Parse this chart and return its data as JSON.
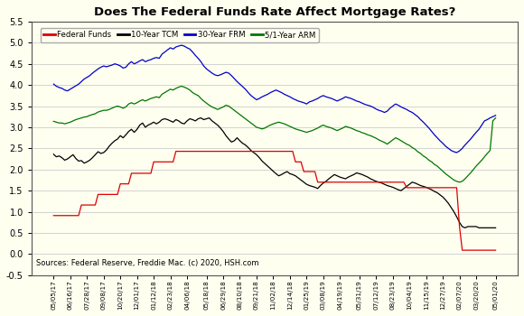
{
  "title": "Does The Federal Funds Rate Affect Mortgage Rates?",
  "background_color": "#FFFFF0",
  "grid_color": "#cccccc",
  "source_text": "Sources: Federal Reserve, Freddie Mac. (c) 2020, HSH.com",
  "ylim": [
    -0.5,
    5.5
  ],
  "yticks": [
    -0.5,
    0.0,
    0.5,
    1.0,
    1.5,
    2.0,
    2.5,
    3.0,
    3.5,
    4.0,
    4.5,
    5.0,
    5.5
  ],
  "series_colors": {
    "fed_funds": "#dd0000",
    "tcm10": "#000000",
    "frm30": "#0000cc",
    "arm51": "#007700"
  },
  "legend_labels": [
    "Federal Funds",
    "10-Year TCM",
    "30-Year FRM",
    "5/1-Year ARM"
  ],
  "xtick_labels": [
    "05/05/17",
    "06/16/17",
    "07/28/17",
    "09/08/17",
    "10/20/17",
    "12/01/17",
    "01/12/18",
    "02/23/18",
    "04/06/18",
    "05/18/18",
    "06/29/18",
    "08/10/18",
    "09/21/18",
    "11/02/18",
    "12/14/18",
    "01/25/19",
    "03/08/19",
    "04/19/19",
    "05/31/19",
    "07/12/19",
    "08/23/19",
    "10/04/19",
    "11/15/19",
    "12/27/19",
    "02/07/20",
    "03/20/20",
    "05/01/20"
  ],
  "n_points": 160,
  "fed_funds": [
    0.91,
    0.91,
    0.91,
    0.91,
    0.91,
    0.91,
    0.91,
    0.91,
    0.91,
    0.91,
    1.16,
    1.16,
    1.16,
    1.16,
    1.16,
    1.16,
    1.41,
    1.41,
    1.41,
    1.41,
    1.41,
    1.41,
    1.41,
    1.41,
    1.66,
    1.66,
    1.66,
    1.66,
    1.91,
    1.91,
    1.91,
    1.91,
    1.91,
    1.91,
    1.91,
    1.91,
    2.18,
    2.18,
    2.18,
    2.18,
    2.18,
    2.18,
    2.18,
    2.18,
    2.43,
    2.43,
    2.43,
    2.43,
    2.43,
    2.43,
    2.43,
    2.43,
    2.43,
    2.43,
    2.43,
    2.43,
    2.43,
    2.43,
    2.43,
    2.43,
    2.43,
    2.43,
    2.43,
    2.43,
    2.43,
    2.43,
    2.43,
    2.43,
    2.43,
    2.43,
    2.43,
    2.43,
    2.43,
    2.43,
    2.43,
    2.43,
    2.43,
    2.43,
    2.43,
    2.43,
    2.43,
    2.43,
    2.43,
    2.43,
    2.43,
    2.43,
    2.43,
    2.18,
    2.18,
    2.18,
    1.95,
    1.95,
    1.95,
    1.95,
    1.95,
    1.7,
    1.7,
    1.7,
    1.7,
    1.7,
    1.7,
    1.7,
    1.7,
    1.7,
    1.7,
    1.7,
    1.7,
    1.7,
    1.7,
    1.7,
    1.7,
    1.7,
    1.7,
    1.7,
    1.7,
    1.7,
    1.7,
    1.7,
    1.7,
    1.7,
    1.7,
    1.7,
    1.7,
    1.7,
    1.7,
    1.7,
    1.7,
    1.57,
    1.57,
    1.57,
    1.57,
    1.57,
    1.57,
    1.57,
    1.57,
    1.57,
    1.57,
    1.57,
    1.57,
    1.57,
    1.57,
    1.57,
    1.57,
    1.57,
    1.57,
    1.57,
    0.65,
    0.09,
    0.09,
    0.09,
    0.09,
    0.09,
    0.09,
    0.09,
    0.09,
    0.09,
    0.09,
    0.09,
    0.09,
    0.09
  ],
  "tcm10": [
    2.36,
    2.3,
    2.32,
    2.28,
    2.22,
    2.25,
    2.3,
    2.35,
    2.26,
    2.2,
    2.21,
    2.15,
    2.18,
    2.22,
    2.28,
    2.35,
    2.42,
    2.38,
    2.4,
    2.46,
    2.55,
    2.62,
    2.68,
    2.72,
    2.8,
    2.75,
    2.82,
    2.9,
    2.95,
    2.88,
    2.95,
    3.05,
    3.1,
    3.0,
    3.05,
    3.08,
    3.12,
    3.08,
    3.12,
    3.18,
    3.2,
    3.18,
    3.15,
    3.12,
    3.18,
    3.15,
    3.1,
    3.08,
    3.15,
    3.2,
    3.18,
    3.15,
    3.2,
    3.22,
    3.18,
    3.2,
    3.22,
    3.15,
    3.1,
    3.05,
    2.98,
    2.9,
    2.8,
    2.72,
    2.65,
    2.68,
    2.75,
    2.68,
    2.62,
    2.58,
    2.52,
    2.45,
    2.4,
    2.35,
    2.28,
    2.2,
    2.14,
    2.08,
    2.02,
    1.96,
    1.9,
    1.85,
    1.88,
    1.92,
    1.95,
    1.9,
    1.88,
    1.85,
    1.8,
    1.75,
    1.7,
    1.65,
    1.62,
    1.6,
    1.58,
    1.55,
    1.62,
    1.68,
    1.72,
    1.78,
    1.83,
    1.88,
    1.85,
    1.82,
    1.8,
    1.78,
    1.82,
    1.85,
    1.88,
    1.92,
    1.9,
    1.88,
    1.85,
    1.82,
    1.78,
    1.75,
    1.72,
    1.7,
    1.68,
    1.65,
    1.62,
    1.6,
    1.58,
    1.55,
    1.52,
    1.5,
    1.55,
    1.6,
    1.65,
    1.7,
    1.68,
    1.65,
    1.62,
    1.6,
    1.58,
    1.55,
    1.52,
    1.48,
    1.45,
    1.4,
    1.35,
    1.28,
    1.2,
    1.1,
    1.0,
    0.88,
    0.75,
    0.65,
    0.62,
    0.65,
    0.65,
    0.65,
    0.65,
    0.62,
    0.62,
    0.62,
    0.62,
    0.62,
    0.62,
    0.62
  ],
  "frm30": [
    4.02,
    3.97,
    3.94,
    3.92,
    3.88,
    3.86,
    3.9,
    3.94,
    3.98,
    4.02,
    4.08,
    4.14,
    4.18,
    4.22,
    4.28,
    4.33,
    4.38,
    4.42,
    4.45,
    4.43,
    4.45,
    4.47,
    4.5,
    4.48,
    4.45,
    4.4,
    4.42,
    4.5,
    4.55,
    4.5,
    4.53,
    4.57,
    4.6,
    4.55,
    4.58,
    4.6,
    4.63,
    4.65,
    4.63,
    4.73,
    4.78,
    4.83,
    4.88,
    4.85,
    4.9,
    4.92,
    4.94,
    4.92,
    4.88,
    4.85,
    4.78,
    4.7,
    4.63,
    4.55,
    4.45,
    4.38,
    4.33,
    4.28,
    4.24,
    4.22,
    4.24,
    4.27,
    4.3,
    4.28,
    4.22,
    4.15,
    4.08,
    4.02,
    3.96,
    3.9,
    3.82,
    3.75,
    3.7,
    3.65,
    3.68,
    3.72,
    3.75,
    3.78,
    3.82,
    3.85,
    3.88,
    3.85,
    3.82,
    3.78,
    3.75,
    3.72,
    3.68,
    3.65,
    3.62,
    3.6,
    3.58,
    3.55,
    3.6,
    3.62,
    3.65,
    3.68,
    3.72,
    3.75,
    3.72,
    3.7,
    3.68,
    3.65,
    3.62,
    3.65,
    3.68,
    3.72,
    3.7,
    3.68,
    3.65,
    3.62,
    3.6,
    3.57,
    3.54,
    3.52,
    3.5,
    3.47,
    3.43,
    3.4,
    3.38,
    3.35,
    3.38,
    3.45,
    3.5,
    3.55,
    3.52,
    3.48,
    3.45,
    3.42,
    3.38,
    3.35,
    3.3,
    3.25,
    3.18,
    3.12,
    3.05,
    2.98,
    2.9,
    2.82,
    2.75,
    2.68,
    2.62,
    2.55,
    2.5,
    2.45,
    2.42,
    2.4,
    2.44,
    2.5,
    2.58,
    2.65,
    2.72,
    2.8,
    2.88,
    2.95,
    3.05,
    3.15,
    3.18,
    3.22,
    3.25,
    3.28
  ],
  "arm51": [
    3.14,
    3.12,
    3.1,
    3.1,
    3.08,
    3.1,
    3.12,
    3.15,
    3.18,
    3.2,
    3.22,
    3.24,
    3.25,
    3.28,
    3.3,
    3.32,
    3.36,
    3.38,
    3.4,
    3.4,
    3.42,
    3.45,
    3.48,
    3.5,
    3.48,
    3.45,
    3.48,
    3.55,
    3.58,
    3.55,
    3.58,
    3.62,
    3.65,
    3.62,
    3.65,
    3.68,
    3.7,
    3.72,
    3.7,
    3.78,
    3.82,
    3.86,
    3.9,
    3.88,
    3.92,
    3.95,
    3.97,
    3.95,
    3.92,
    3.88,
    3.82,
    3.78,
    3.75,
    3.68,
    3.62,
    3.57,
    3.52,
    3.48,
    3.45,
    3.42,
    3.45,
    3.48,
    3.52,
    3.5,
    3.45,
    3.4,
    3.35,
    3.3,
    3.25,
    3.2,
    3.15,
    3.1,
    3.05,
    3.0,
    2.98,
    2.96,
    2.98,
    3.02,
    3.05,
    3.08,
    3.1,
    3.12,
    3.1,
    3.08,
    3.05,
    3.02,
    2.99,
    2.96,
    2.94,
    2.92,
    2.9,
    2.88,
    2.9,
    2.92,
    2.95,
    2.98,
    3.02,
    3.05,
    3.02,
    3.0,
    2.98,
    2.95,
    2.92,
    2.95,
    2.98,
    3.02,
    3.0,
    2.98,
    2.95,
    2.92,
    2.9,
    2.87,
    2.85,
    2.82,
    2.8,
    2.77,
    2.74,
    2.7,
    2.67,
    2.64,
    2.6,
    2.65,
    2.7,
    2.75,
    2.72,
    2.68,
    2.64,
    2.6,
    2.57,
    2.52,
    2.48,
    2.42,
    2.38,
    2.32,
    2.28,
    2.22,
    2.18,
    2.12,
    2.08,
    2.02,
    1.96,
    1.9,
    1.85,
    1.8,
    1.75,
    1.72,
    1.7,
    1.72,
    1.78,
    1.85,
    1.92,
    2.0,
    2.08,
    2.15,
    2.22,
    2.3,
    2.38,
    2.45,
    3.15,
    3.22
  ]
}
